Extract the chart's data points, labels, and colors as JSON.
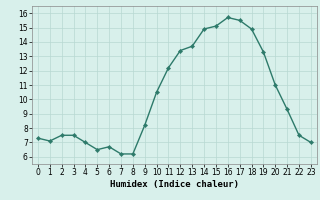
{
  "x": [
    0,
    1,
    2,
    3,
    4,
    5,
    6,
    7,
    8,
    9,
    10,
    11,
    12,
    13,
    14,
    15,
    16,
    17,
    18,
    19,
    20,
    21,
    22,
    23
  ],
  "y": [
    7.3,
    7.1,
    7.5,
    7.5,
    7.0,
    6.5,
    6.7,
    6.2,
    6.2,
    8.2,
    10.5,
    12.2,
    13.4,
    13.7,
    14.9,
    15.1,
    15.7,
    15.5,
    14.9,
    13.3,
    11.0,
    9.3,
    7.5,
    7.0
  ],
  "line_color": "#2d7a6a",
  "marker_color": "#2d7a6a",
  "bg_color": "#d8f0eb",
  "grid_color_major": "#b8d8d2",
  "grid_color_minor": "#c8e4e0",
  "xlabel": "Humidex (Indice chaleur)",
  "xlim": [
    -0.5,
    23.5
  ],
  "ylim": [
    5.5,
    16.5
  ],
  "yticks": [
    6,
    7,
    8,
    9,
    10,
    11,
    12,
    13,
    14,
    15,
    16
  ],
  "xticks": [
    0,
    1,
    2,
    3,
    4,
    5,
    6,
    7,
    8,
    9,
    10,
    11,
    12,
    13,
    14,
    15,
    16,
    17,
    18,
    19,
    20,
    21,
    22,
    23
  ],
  "tick_fontsize": 5.5,
  "xlabel_fontsize": 6.5,
  "line_width": 1.0,
  "marker_size": 2.2
}
